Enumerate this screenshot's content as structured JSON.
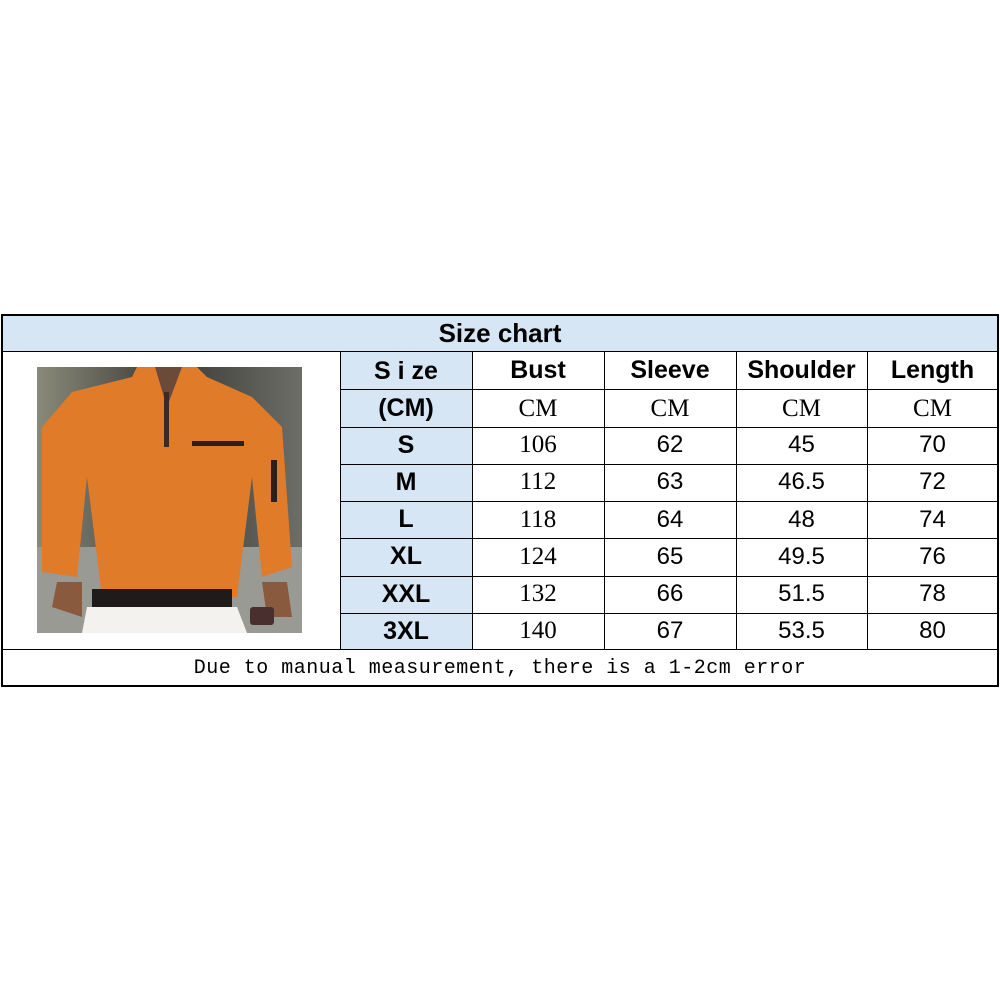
{
  "title": "Size chart",
  "header": {
    "size_line1": "S i ze",
    "size_line2": "(CM)",
    "columns": [
      "Bust",
      "Sleeve",
      "Shoulder",
      "Length"
    ],
    "units": [
      "CM",
      "CM",
      "CM",
      "CM"
    ]
  },
  "rows": [
    {
      "size": "S",
      "bust": "106",
      "sleeve": "62",
      "shoulder": "45",
      "length": "70"
    },
    {
      "size": "M",
      "bust": "112",
      "sleeve": "63",
      "shoulder": "46.5",
      "length": "72"
    },
    {
      "size": "L",
      "bust": "118",
      "sleeve": "64",
      "shoulder": "48",
      "length": "74"
    },
    {
      "size": "XL",
      "bust": "124",
      "sleeve": "65",
      "shoulder": "49.5",
      "length": "76"
    },
    {
      "size": "XXL",
      "bust": "132",
      "sleeve": "66",
      "shoulder": "51.5",
      "length": "78"
    },
    {
      "size": "3XL",
      "bust": "140",
      "sleeve": "67",
      "shoulder": "53.5",
      "length": "80"
    }
  ],
  "footer": "Due to manual measurement, there is a 1-2cm error",
  "colors": {
    "header_bg": "#d6e6f4",
    "shirt": "#e07b2a"
  }
}
